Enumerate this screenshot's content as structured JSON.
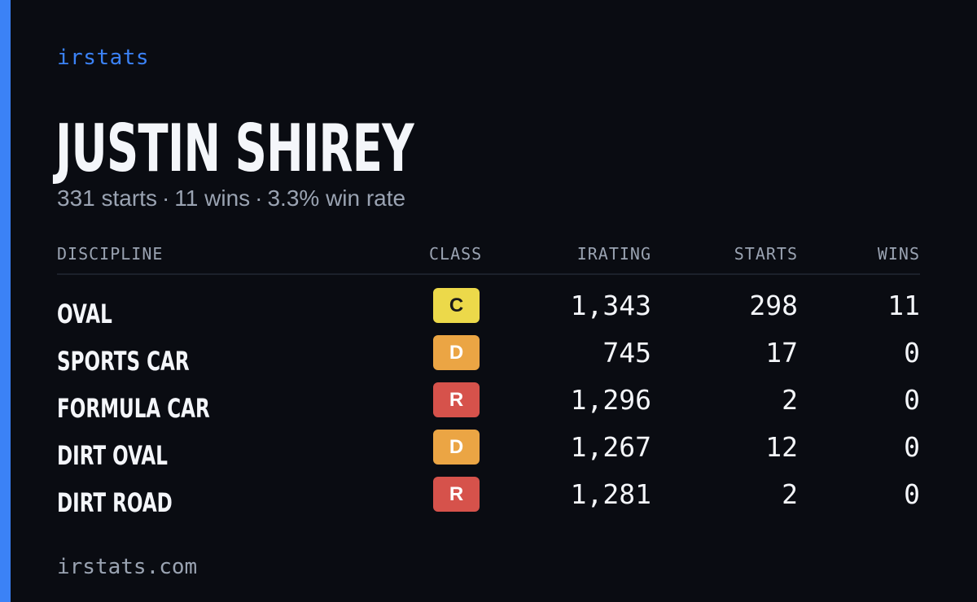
{
  "brand": "irstats",
  "driver": {
    "name": "JUSTIN SHIREY",
    "summary": {
      "starts": "331 starts",
      "wins": "11 wins",
      "win_rate": "3.3% win rate",
      "separator": "·"
    }
  },
  "table": {
    "headers": {
      "discipline": "DISCIPLINE",
      "class": "CLASS",
      "irating": "IRATING",
      "starts": "STARTS",
      "wins": "WINS"
    },
    "rows": [
      {
        "discipline": "OVAL",
        "class": "C",
        "irating": "1,343",
        "starts": "298",
        "wins": "11"
      },
      {
        "discipline": "SPORTS CAR",
        "class": "D",
        "irating": "745",
        "starts": "17",
        "wins": "0"
      },
      {
        "discipline": "FORMULA CAR",
        "class": "R",
        "irating": "1,296",
        "starts": "2",
        "wins": "0"
      },
      {
        "discipline": "DIRT OVAL",
        "class": "D",
        "irating": "1,267",
        "starts": "12",
        "wins": "0"
      },
      {
        "discipline": "DIRT ROAD",
        "class": "R",
        "irating": "1,281",
        "starts": "2",
        "wins": "0"
      }
    ]
  },
  "class_colors": {
    "C": "#ecd94a",
    "D": "#eba544",
    "R": "#d6524b"
  },
  "accent_color": "#3b82f6",
  "footer": "irstats.com"
}
